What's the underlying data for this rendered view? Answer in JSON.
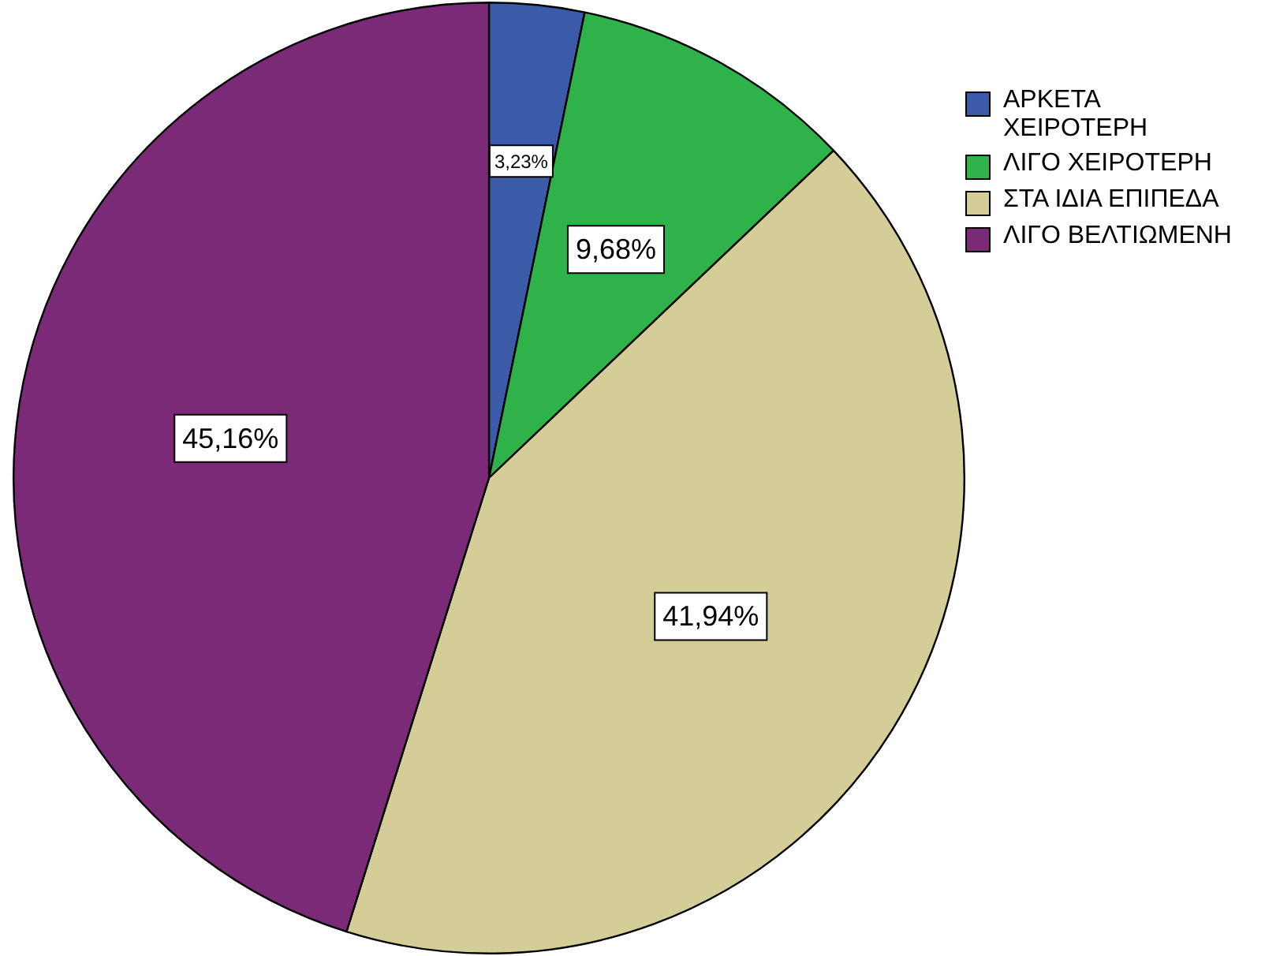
{
  "chart_data": {
    "type": "pie",
    "categories": [
      "ΑΡΚΕΤΑ ΧΕΙΡΟΤΕΡΗ",
      "ΛΙΓΟ ΧΕΙΡΟΤΕΡΗ",
      "ΣΤΑ ΙΔΙΑ ΕΠΙΠΕΔΑ",
      "ΛΙΓΟ ΒΕΛΤΙΩΜΕΝΗ"
    ],
    "values": [
      3.23,
      9.68,
      41.94,
      45.16
    ],
    "colors": [
      "#3b5ba8",
      "#2fb24a",
      "#d4cd98",
      "#7b2a78"
    ],
    "value_labels": [
      "3,23%",
      "9,68%",
      "41,94%",
      "45,16%"
    ],
    "legend": "top right"
  }
}
